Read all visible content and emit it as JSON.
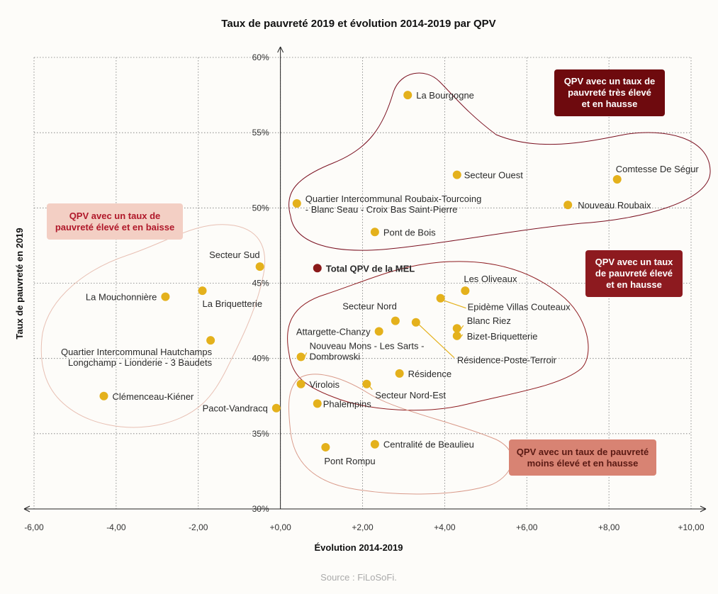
{
  "colors": {
    "point": "#e4b11c",
    "total_point": "#8b1a1a",
    "box_very_high": "#6e0a0e",
    "box_high_decrease_bg": "#f3cfc4",
    "box_high_decrease_text": "#b0182a",
    "box_high_increase": "#8d1a1f",
    "box_lower_increase": "#d88373",
    "outline_very_high": "#7a1020",
    "outline_high_increase": "#8d1a1f",
    "outline_high_decrease": "#e8c0b4",
    "outline_lower_increase": "#d99a8a"
  },
  "chart_data": {
    "type": "scatter",
    "title": "Taux de pauvreté 2019 et évolution 2014-2019 par QPV",
    "xlabel": "Évolution 2014-2019",
    "ylabel": "Taux de pauvreté en 2019",
    "xlim": [
      -6,
      10
    ],
    "ylim": [
      30,
      60
    ],
    "x_ticks": [
      "-6,00",
      "-4,00",
      "-2,00",
      "+0,00",
      "+2,00",
      "+4,00",
      "+6,00",
      "+8,00",
      "+10,00"
    ],
    "y_ticks": [
      "30%",
      "35%",
      "40%",
      "45%",
      "50%",
      "55%",
      "60%"
    ],
    "grid": true,
    "source": "Source : FiLoSoFi.",
    "points": [
      {
        "name": "La Bourgogne",
        "x": 3.1,
        "y": 57.5
      },
      {
        "name": "Secteur Ouest",
        "x": 4.3,
        "y": 52.2
      },
      {
        "name": "Comtesse De Ségur",
        "x": 8.2,
        "y": 51.9
      },
      {
        "name": "Nouveau Roubaix",
        "x": 7.0,
        "y": 50.2
      },
      {
        "name": "Quartier Intercommunal Roubaix-Tourcoing\n- Blanc Seau - Croix Bas Saint-Pierre",
        "x": 0.4,
        "y": 50.3
      },
      {
        "name": "Pont de Bois",
        "x": 2.3,
        "y": 48.4
      },
      {
        "name": "Secteur Sud",
        "x": -0.5,
        "y": 46.1
      },
      {
        "name": "La Mouchonnière",
        "x": -2.8,
        "y": 44.1
      },
      {
        "name": "La Briquetterie",
        "x": -1.9,
        "y": 44.5
      },
      {
        "name": "Quartier Intercommunal Hautchamps\nLongchamp - Lionderie - 3 Baudets",
        "x": -1.7,
        "y": 41.2
      },
      {
        "name": "Clémenceau-Kiéner",
        "x": -4.3,
        "y": 37.5
      },
      {
        "name": "Pacot-Vandracq",
        "x": -0.1,
        "y": 36.7
      },
      {
        "name": "Les Oliveaux",
        "x": 4.5,
        "y": 44.5
      },
      {
        "name": "Epidème Villas Couteaux",
        "x": 3.9,
        "y": 44.0
      },
      {
        "name": "Secteur Nord",
        "x": 2.8,
        "y": 42.5
      },
      {
        "name": "Blanc Riez",
        "x": 4.3,
        "y": 42.0
      },
      {
        "name": "Attargette-Chanzy",
        "x": 2.4,
        "y": 41.8
      },
      {
        "name": "Bizet-Briquetterie",
        "x": 4.3,
        "y": 41.5
      },
      {
        "name": "Résidence-Poste-Terroir",
        "x": 3.3,
        "y": 42.4
      },
      {
        "name": "Nouveau Mons - Les Sarts -\nDombrowski",
        "x": 0.5,
        "y": 40.1
      },
      {
        "name": "Résidence",
        "x": 2.9,
        "y": 39.0
      },
      {
        "name": "Virolois",
        "x": 0.5,
        "y": 38.3
      },
      {
        "name": "Secteur Nord-Est",
        "x": 2.1,
        "y": 38.3
      },
      {
        "name": "Phalempins",
        "x": 0.9,
        "y": 37.0
      },
      {
        "name": "Centralité de Beaulieu",
        "x": 2.3,
        "y": 34.3
      },
      {
        "name": "Pont Rompu",
        "x": 1.1,
        "y": 34.1
      }
    ],
    "total": {
      "name": "Total QPV de la MEL",
      "x": 0.9,
      "y": 46.0
    },
    "annotations": [
      "QPV avec un taux de pauvreté très élevé et en hausse",
      "QPV avec un taux de pauvreté élevé et en baisse",
      "QPV avec un taux de pauvreté élevé et en hausse",
      "QPV avec un taux de pauvreté moins élevé et en hausse"
    ]
  },
  "boxes": {
    "very_high": "QPV avec un taux de\npauvreté très élevé\net en hausse",
    "high_decrease": "QPV avec un taux de\npauvreté élevé et en baisse",
    "high_increase": "QPV avec un taux\nde pauvreté élevé\net en hausse",
    "lower_increase": "QPV avec un taux de pauvreté\nmoins élevé et en hausse"
  }
}
